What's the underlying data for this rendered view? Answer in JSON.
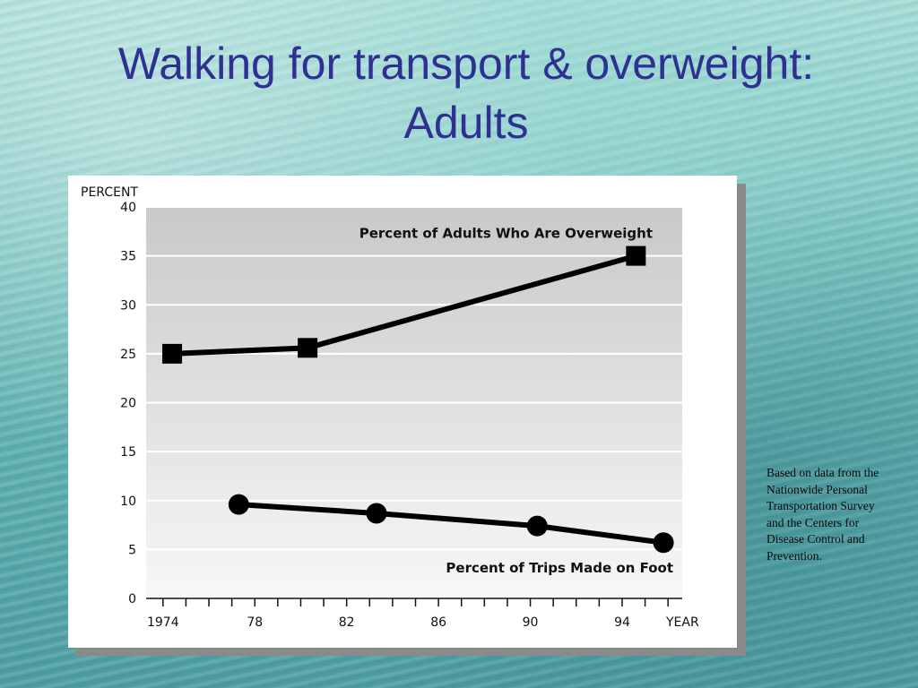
{
  "slide": {
    "title_line1": "Walking for transport & overweight:",
    "title_line2": "Adults",
    "source_note": "Based on data from the Nationwide Personal Transportation Survey and the Centers for Disease Control and Prevention."
  },
  "colors": {
    "title": "#2e3192",
    "series": "#000000",
    "plot_gradient_top": "#c9c9c9",
    "plot_gradient_bottom": "#f7f7f7"
  },
  "chart_data": {
    "type": "line",
    "ylabel": "PERCENT",
    "xlabel": "YEAR",
    "ylim": [
      0,
      40
    ],
    "xlim": [
      1973.5,
      1996.5
    ],
    "grid": true,
    "y_ticks": [
      {
        "value": 0,
        "label": "0"
      },
      {
        "value": 5,
        "label": "5"
      },
      {
        "value": 10,
        "label": "10"
      },
      {
        "value": 15,
        "label": "15"
      },
      {
        "value": 20,
        "label": "20"
      },
      {
        "value": 25,
        "label": "25"
      },
      {
        "value": 30,
        "label": "30"
      },
      {
        "value": 35,
        "label": "35"
      },
      {
        "value": 40,
        "label": "40"
      }
    ],
    "x_tick_labels": [
      {
        "value": 1974,
        "label": "1974"
      },
      {
        "value": 1978,
        "label": "78"
      },
      {
        "value": 1982,
        "label": "82"
      },
      {
        "value": 1986,
        "label": "86"
      },
      {
        "value": 1990,
        "label": "90"
      },
      {
        "value": 1994,
        "label": "94"
      }
    ],
    "x_minor_ticks": [
      1974,
      1975,
      1976,
      1977,
      1978,
      1979,
      1980,
      1981,
      1982,
      1983,
      1984,
      1985,
      1986,
      1987,
      1988,
      1989,
      1990,
      1991,
      1992,
      1993,
      1994,
      1995,
      1996
    ],
    "series": [
      {
        "name": "Percent of Adults Who Are Overweight",
        "marker": "square",
        "x": [
          1974.4,
          1980.3,
          1994.6
        ],
        "y": [
          25.0,
          25.6,
          35.0
        ]
      },
      {
        "name": "Percent of Trips Made on Foot",
        "marker": "circle",
        "x": [
          1977.3,
          1983.3,
          1990.3,
          1995.8
        ],
        "y": [
          9.6,
          8.7,
          7.4,
          5.7
        ]
      }
    ]
  }
}
